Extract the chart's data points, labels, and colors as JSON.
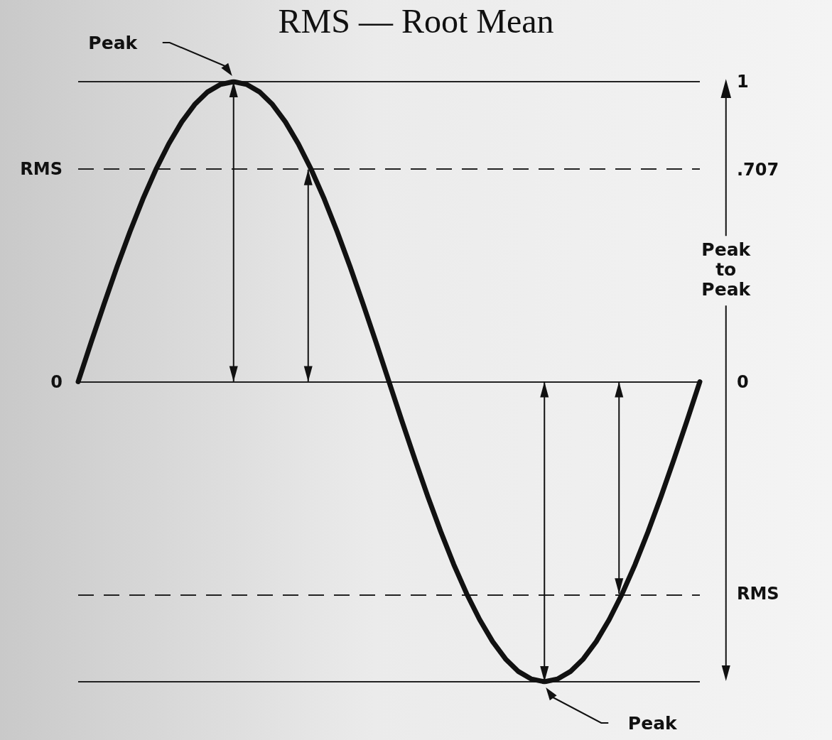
{
  "chart_data": {
    "type": "line",
    "title": "RMS — Root Mean",
    "categories": [
      null,
      null,
      null,
      null,
      null,
      null,
      null,
      null,
      null,
      null,
      null,
      null,
      null,
      null,
      null,
      null,
      null,
      null,
      null,
      null,
      null,
      null,
      null,
      null,
      null,
      null,
      null,
      null,
      null,
      null,
      null,
      null,
      null,
      null,
      null,
      null,
      null,
      null,
      null,
      null,
      null,
      null,
      null,
      null,
      null,
      null,
      null,
      null,
      null
    ],
    "series": [
      {
        "color": "#111111",
        "values": [
          0,
          0.131,
          0.259,
          0.383,
          0.5,
          0.609,
          0.707,
          0.793,
          0.866,
          0.924,
          0.966,
          0.991,
          1,
          0.991,
          0.966,
          0.924,
          0.866,
          0.793,
          0.707,
          0.609,
          0.5,
          0.383,
          0.259,
          0.131,
          0,
          -0.131,
          -0.259,
          -0.383,
          -0.5,
          -0.609,
          -0.707,
          -0.793,
          -0.866,
          -0.924,
          -0.966,
          -0.991,
          -1,
          -0.991,
          -0.966,
          -0.924,
          -0.866,
          -0.793,
          -0.707,
          -0.609,
          -0.5,
          -0.383,
          -0.259,
          -0.131,
          0
        ]
      }
    ],
    "ylim": [
      -1,
      1
    ],
    "yticks": [
      1,
      {
        "value": 0.707,
        "label": ".707"
      },
      0,
      {
        "value": -0.707,
        "label": "RMS"
      }
    ],
    "ref_lines": [
      {
        "axis": "y",
        "value": 1,
        "line_style": "solid",
        "color": "#222222"
      },
      {
        "axis": "y",
        "value": 0.707,
        "line_style": "dashed",
        "color": "#222222",
        "label": "RMS"
      },
      {
        "axis": "y",
        "value": 0,
        "line_style": "solid",
        "color": "#222222",
        "label": "0"
      },
      {
        "axis": "y",
        "value": -0.707,
        "line_style": "dashed",
        "color": "#222222"
      },
      {
        "axis": "y",
        "value": -1,
        "line_style": "solid",
        "color": "#222222"
      }
    ],
    "annotations": [
      {
        "text": "Peak",
        "y": 1
      },
      {
        "text": "Peak",
        "y": -1
      },
      "Peak to Peak"
    ],
    "tick_labels": "y",
    "grid": false,
    "line_style": "solid"
  }
}
